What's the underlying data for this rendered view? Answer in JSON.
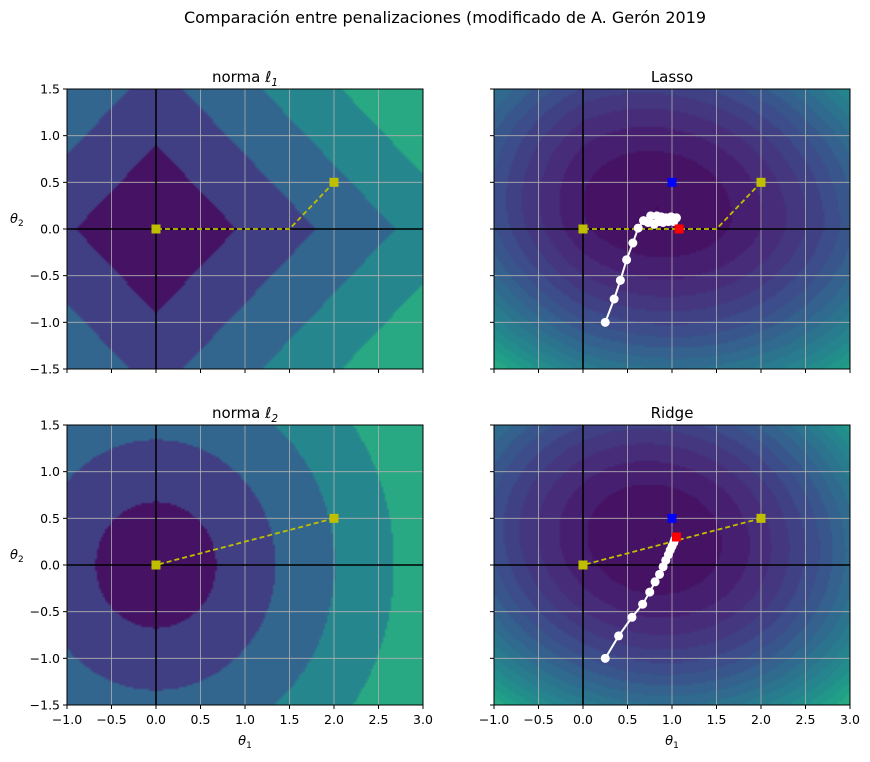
{
  "figure": {
    "title": "Comparación entre penalizaciones (modificado de A. Gerón 2019"
  },
  "colors": {
    "path_start": "#bfbf00",
    "path_steps": "#ffffff",
    "lasso_ridge_optimum_red": "#ff0000",
    "unregularized_optimum_blue": "#0000ff",
    "grid": "#b0b0b0",
    "axes_lines": "#000000"
  },
  "chart_data": [
    {
      "id": "l1",
      "type": "contour",
      "title": "norma ℓ",
      "title_sub": "1",
      "xlabel": "",
      "ylabel": "θ",
      "ylabel_sub": "2",
      "xlim": [
        -1.0,
        3.0
      ],
      "ylim": [
        -1.5,
        1.5
      ],
      "xticks": [
        "−1.0",
        "−0.5",
        "0.0",
        "0.5",
        "1.0",
        "1.5",
        "2.0",
        "2.5",
        "3.0"
      ],
      "yticks": [
        "−1.5",
        "−1.0",
        "−0.5",
        "0.0",
        "0.5",
        "1.0",
        "1.5"
      ],
      "show_xtick_labels": false,
      "show_ytick_labels": true,
      "grid": true,
      "field": "l1",
      "levels": 5,
      "yellow_path": [
        [
          2.0,
          0.5
        ],
        [
          1.5,
          0.0
        ],
        [
          0.0,
          0.0
        ]
      ],
      "white_path": [],
      "red_point": null,
      "blue_point": null
    },
    {
      "id": "lasso",
      "type": "contour",
      "title": "Lasso",
      "xlabel": "",
      "ylabel": "",
      "xlim": [
        -1.0,
        3.0
      ],
      "ylim": [
        -1.5,
        1.5
      ],
      "xticks": [
        "−1.0",
        "−0.5",
        "0.0",
        "0.5",
        "1.0",
        "1.5",
        "2.0",
        "2.5",
        "3.0"
      ],
      "yticks": [
        "−1.5",
        "−1.0",
        "−0.5",
        "0.0",
        "0.5",
        "1.0",
        "1.5"
      ],
      "show_xtick_labels": false,
      "show_ytick_labels": false,
      "grid": true,
      "field": "lasso",
      "levels": 16,
      "yellow_path": [
        [
          2.0,
          0.5
        ],
        [
          1.5,
          0.0
        ],
        [
          0.0,
          0.0
        ]
      ],
      "white_path": [
        [
          0.25,
          -1.0
        ],
        [
          0.35,
          -0.75
        ],
        [
          0.42,
          -0.55
        ],
        [
          0.49,
          -0.33
        ],
        [
          0.56,
          -0.15
        ],
        [
          0.62,
          0.01
        ],
        [
          0.68,
          0.09
        ],
        [
          0.73,
          0.07
        ],
        [
          0.76,
          0.14
        ],
        [
          0.8,
          0.05
        ],
        [
          0.83,
          0.14
        ],
        [
          0.86,
          0.08
        ],
        [
          0.88,
          0.13
        ],
        [
          0.9,
          0.07
        ],
        [
          0.93,
          0.12
        ],
        [
          0.96,
          0.08
        ],
        [
          0.99,
          0.13
        ],
        [
          1.02,
          0.08
        ],
        [
          1.05,
          0.12
        ]
      ],
      "red_point": [
        1.08,
        0.0
      ],
      "blue_point": [
        1.0,
        0.5
      ]
    },
    {
      "id": "l2",
      "type": "contour",
      "title": "norma ℓ",
      "title_sub": "2",
      "xlabel": "θ",
      "xlabel_sub": "1",
      "ylabel": "θ",
      "ylabel_sub": "2",
      "xlim": [
        -1.0,
        3.0
      ],
      "ylim": [
        -1.5,
        1.5
      ],
      "xticks": [
        "−1.0",
        "−0.5",
        "0.0",
        "0.5",
        "1.0",
        "1.5",
        "2.0",
        "2.5",
        "3.0"
      ],
      "yticks": [
        "−1.5",
        "−1.0",
        "−0.5",
        "0.0",
        "0.5",
        "1.0",
        "1.5"
      ],
      "show_xtick_labels": true,
      "show_ytick_labels": true,
      "grid": true,
      "field": "l2",
      "levels": 5,
      "yellow_path": [
        [
          2.0,
          0.5
        ],
        [
          0.0,
          0.0
        ]
      ],
      "white_path": [],
      "red_point": null,
      "blue_point": null
    },
    {
      "id": "ridge",
      "type": "contour",
      "title": "Ridge",
      "xlabel": "θ",
      "xlabel_sub": "1",
      "ylabel": "",
      "xlim": [
        -1.0,
        3.0
      ],
      "ylim": [
        -1.5,
        1.5
      ],
      "xticks": [
        "−1.0",
        "−0.5",
        "0.0",
        "0.5",
        "1.0",
        "1.5",
        "2.0",
        "2.5",
        "3.0"
      ],
      "yticks": [
        "−1.5",
        "−1.0",
        "−0.5",
        "0.0",
        "0.5",
        "1.0",
        "1.5"
      ],
      "show_xtick_labels": true,
      "show_ytick_labels": false,
      "grid": true,
      "field": "ridge",
      "levels": 16,
      "yellow_path": [
        [
          2.0,
          0.5
        ],
        [
          0.0,
          0.0
        ]
      ],
      "white_path": [
        [
          0.25,
          -1.0
        ],
        [
          0.4,
          -0.76
        ],
        [
          0.55,
          -0.56
        ],
        [
          0.67,
          -0.42
        ],
        [
          0.75,
          -0.29
        ],
        [
          0.81,
          -0.18
        ],
        [
          0.86,
          -0.1
        ],
        [
          0.9,
          -0.02
        ],
        [
          0.93,
          0.05
        ],
        [
          0.96,
          0.11
        ],
        [
          0.98,
          0.16
        ],
        [
          1.0,
          0.2
        ],
        [
          1.02,
          0.24
        ],
        [
          1.03,
          0.27
        ]
      ],
      "red_point": [
        1.05,
        0.3
      ],
      "blue_point": [
        1.0,
        0.5
      ]
    }
  ]
}
